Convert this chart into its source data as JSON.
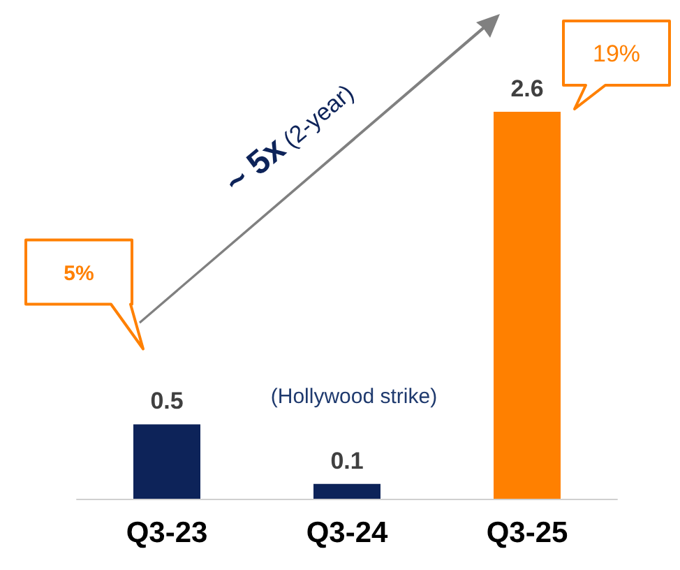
{
  "chart_data": {
    "type": "bar",
    "categories": [
      "Q3-23",
      "Q3-24",
      "Q3-25"
    ],
    "values": [
      0.5,
      0.1,
      2.6
    ],
    "colors": [
      "#0d2359",
      "#0d2359",
      "#ff8000"
    ],
    "data_labels": true,
    "annotations": [
      "5%",
      "19%",
      "(Hollywood strike)",
      "~ 5x (2-year)"
    ]
  }
}
